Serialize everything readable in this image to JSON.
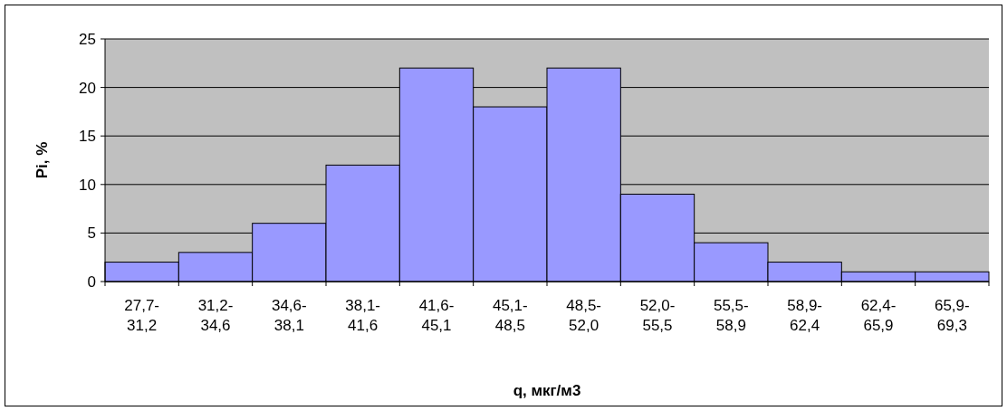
{
  "chart_data": {
    "type": "bar",
    "xlabel": "q, мкг/м3",
    "ylabel": "Pi, %",
    "categories": [
      "27,7-31,2",
      "31,2-34,6",
      "34,6-38,1",
      "38,1-41,6",
      "41,6-45,1",
      "45,1-48,5",
      "48,5-52,0",
      "52,0-55,5",
      "55,5-58,9",
      "58,9-62,4",
      "62,4-65,9",
      "65,9-69,3"
    ],
    "values": [
      2,
      3,
      6,
      12,
      22,
      18,
      22,
      9,
      4,
      2,
      1,
      1
    ],
    "color": "#9999ff",
    "ylim": [
      0,
      25
    ],
    "yticks": [
      0,
      5,
      10,
      15,
      20,
      25
    ],
    "grid": "y"
  }
}
